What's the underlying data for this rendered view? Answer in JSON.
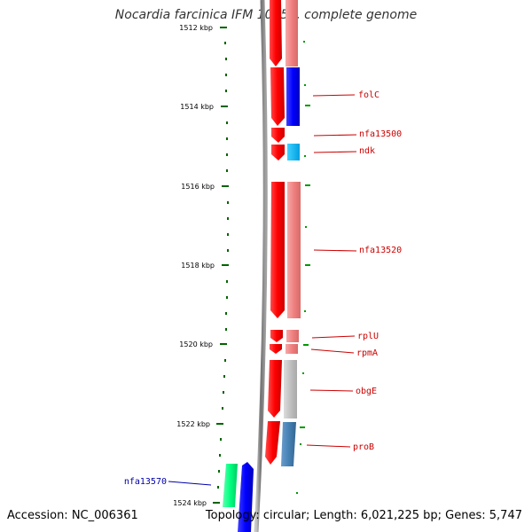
{
  "title": "Nocardia farcinica IFM 10152, complete genome",
  "footer": {
    "accession": "Accession: NC_006361",
    "topology": "Topology: circular; Length: 6,021,225 bp; Genes: 5,747"
  },
  "ruler": {
    "labels": [
      "1512 kbp",
      "1514 kbp",
      "1516 kbp",
      "1518 kbp",
      "1520 kbp",
      "1522 kbp",
      "1524 kbp"
    ]
  },
  "genes": [
    {
      "label": "folC",
      "color": "#0000ff"
    },
    {
      "label": "nfa13500",
      "color": "#ff0000"
    },
    {
      "label": "ndk",
      "color": "#00bfff"
    },
    {
      "label": "nfa13520",
      "color": "#f08080"
    },
    {
      "label": "rplU",
      "color": "#f08080"
    },
    {
      "label": "rpmA",
      "color": "#f08080"
    },
    {
      "label": "obgE",
      "color": "#c0c0c0"
    },
    {
      "label": "proB",
      "color": "#4682b4"
    },
    {
      "label": "nfa13570",
      "color": "#00ff7f"
    }
  ],
  "colors": {
    "cds": "#ff0000",
    "label_right": "#cc0000",
    "label_left": "#0000aa",
    "ruler_tick": "#006400"
  }
}
